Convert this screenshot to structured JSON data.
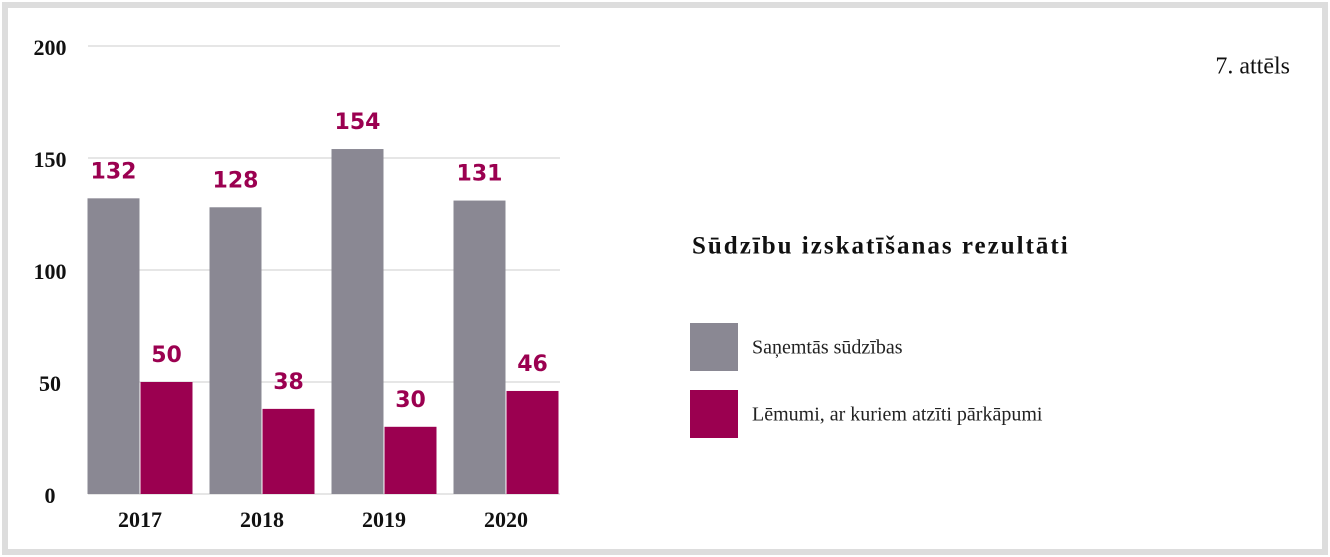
{
  "chart_data": {
    "type": "bar",
    "title": "Sūdzību izskatīšanas rezultāti",
    "figure_label": "7. attēls",
    "categories": [
      "2017",
      "2018",
      "2019",
      "2020"
    ],
    "series": [
      {
        "name": "Saņemtās sūdzības",
        "color": "#8a8893",
        "values": [
          132,
          128,
          154,
          131
        ]
      },
      {
        "name": "Lēmumi, ar kuriem atzīti pārkāpumi",
        "color": "#9b0050",
        "values": [
          50,
          38,
          30,
          46
        ]
      }
    ],
    "ylim": [
      0,
      200
    ],
    "yticks": [
      0,
      50,
      100,
      150,
      200
    ],
    "grid": true,
    "legend": "right",
    "value_label_color": "#9b0050"
  }
}
